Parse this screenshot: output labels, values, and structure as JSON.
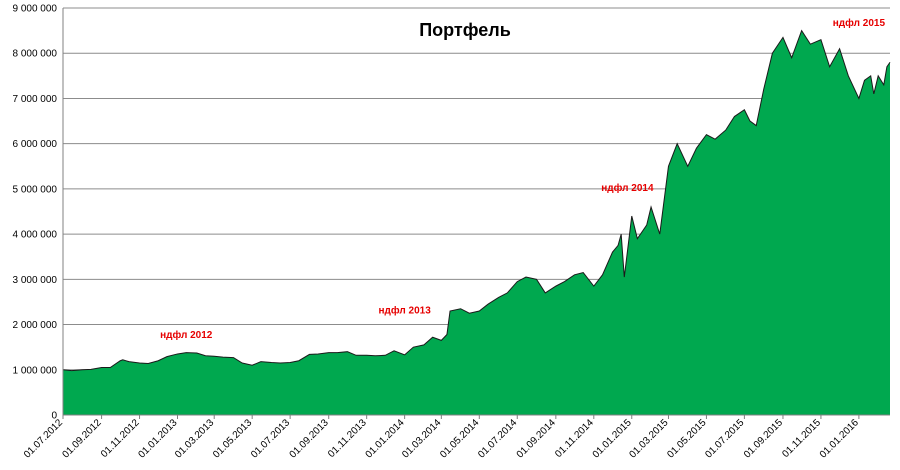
{
  "chart_data": {
    "type": "area",
    "title": "Портфель",
    "xlabel": "",
    "ylabel": "",
    "ylim": [
      0,
      9000000
    ],
    "yticks": [
      0,
      1000000,
      2000000,
      3000000,
      4000000,
      5000000,
      6000000,
      7000000,
      8000000,
      9000000
    ],
    "ytick_labels": [
      "0",
      "1 000 000",
      "2 000 000",
      "3 000 000",
      "4 000 000",
      "5 000 000",
      "6 000 000",
      "7 000 000",
      "8 000 000",
      "9 000 000"
    ],
    "xlim": [
      "2012-07-01",
      "2016-02-20"
    ],
    "xticks": [
      "2012-07-01",
      "2012-09-01",
      "2012-11-01",
      "2013-01-01",
      "2013-03-01",
      "2013-05-01",
      "2013-07-01",
      "2013-09-01",
      "2013-11-01",
      "2014-01-01",
      "2014-03-01",
      "2014-05-01",
      "2014-07-01",
      "2014-09-01",
      "2014-11-01",
      "2015-01-01",
      "2015-03-01",
      "2015-05-01",
      "2015-07-01",
      "2015-09-01",
      "2015-11-01",
      "2016-01-01"
    ],
    "xtick_labels": [
      "01.07.2012",
      "01.09.2012",
      "01.11.2012",
      "01.01.2013",
      "01.03.2013",
      "01.05.2013",
      "01.07.2013",
      "01.09.2013",
      "01.11.2013",
      "01.01.2014",
      "01.03.2014",
      "01.05.2014",
      "01.07.2014",
      "01.09.2014",
      "01.11.2014",
      "01.01.2015",
      "01.03.2015",
      "01.05.2015",
      "01.07.2015",
      "01.09.2015",
      "01.11.2015",
      "01.01.2016"
    ],
    "grid": true,
    "legend": "none",
    "fill_color": "#00A84F",
    "line_color": "#1a1a1a",
    "annotation_color": "#E60000",
    "series": [
      {
        "x": [
          "2012-07-01",
          "2012-07-15",
          "2012-08-01",
          "2012-08-15",
          "2012-09-01",
          "2012-09-15",
          "2012-10-01",
          "2012-10-05",
          "2012-10-15",
          "2012-11-01",
          "2012-11-15",
          "2012-12-01",
          "2012-12-15",
          "2013-01-01",
          "2013-01-15",
          "2013-02-01",
          "2013-02-15",
          "2013-03-01",
          "2013-03-15",
          "2013-04-01",
          "2013-04-15",
          "2013-05-01",
          "2013-05-15",
          "2013-06-01",
          "2013-06-15",
          "2013-07-01",
          "2013-07-15",
          "2013-08-01",
          "2013-08-15",
          "2013-09-01",
          "2013-09-15",
          "2013-10-01",
          "2013-10-15",
          "2013-11-01",
          "2013-11-15",
          "2013-12-01",
          "2013-12-15",
          "2014-01-01",
          "2014-01-15",
          "2014-02-01",
          "2014-02-15",
          "2014-03-01",
          "2014-03-10",
          "2014-03-15",
          "2014-04-01",
          "2014-04-15",
          "2014-05-01",
          "2014-05-15",
          "2014-06-01",
          "2014-06-15",
          "2014-07-01",
          "2014-07-15",
          "2014-08-01",
          "2014-08-15",
          "2014-09-01",
          "2014-09-15",
          "2014-10-01",
          "2014-10-15",
          "2014-11-01",
          "2014-11-15",
          "2014-12-01",
          "2014-12-10",
          "2014-12-15",
          "2014-12-20",
          "2015-01-01",
          "2015-01-10",
          "2015-01-15",
          "2015-01-25",
          "2015-02-01",
          "2015-02-15",
          "2015-03-01",
          "2015-03-15",
          "2015-04-01",
          "2015-04-15",
          "2015-05-01",
          "2015-05-15",
          "2015-06-01",
          "2015-06-15",
          "2015-07-01",
          "2015-07-10",
          "2015-07-20",
          "2015-08-01",
          "2015-08-15",
          "2015-09-01",
          "2015-09-15",
          "2015-10-01",
          "2015-10-15",
          "2015-11-01",
          "2015-11-15",
          "2015-12-01",
          "2015-12-15",
          "2016-01-01",
          "2016-01-10",
          "2016-01-20",
          "2016-01-25",
          "2016-02-01",
          "2016-02-10",
          "2016-02-15",
          "2016-02-20"
        ],
        "values": [
          1000000,
          980000,
          1000000,
          1010000,
          1050000,
          1050000,
          1200000,
          1220000,
          1180000,
          1150000,
          1140000,
          1200000,
          1290000,
          1350000,
          1380000,
          1370000,
          1310000,
          1300000,
          1280000,
          1270000,
          1150000,
          1100000,
          1180000,
          1160000,
          1150000,
          1160000,
          1200000,
          1340000,
          1350000,
          1380000,
          1380000,
          1400000,
          1320000,
          1320000,
          1310000,
          1320000,
          1420000,
          1330000,
          1500000,
          1550000,
          1720000,
          1650000,
          1780000,
          2300000,
          2350000,
          2250000,
          2300000,
          2450000,
          2600000,
          2700000,
          2950000,
          3050000,
          3000000,
          2700000,
          2850000,
          2950000,
          3100000,
          3150000,
          2850000,
          3100000,
          3600000,
          3750000,
          4000000,
          3050000,
          4400000,
          3900000,
          4000000,
          4200000,
          4600000,
          4000000,
          5500000,
          6000000,
          5500000,
          5900000,
          6200000,
          6100000,
          6300000,
          6600000,
          6750000,
          6500000,
          6400000,
          7200000,
          8000000,
          8350000,
          7900000,
          8500000,
          8200000,
          8300000,
          7700000,
          8100000,
          7500000,
          7000000,
          7400000,
          7500000,
          7100000,
          7500000,
          7300000,
          7700000,
          7800000
        ]
      }
    ],
    "annotations": [
      {
        "text": "ндфл 2012",
        "x": "2013-01-15",
        "y": 1700000
      },
      {
        "text": "ндфл 2013",
        "x": "2014-01-01",
        "y": 2250000
      },
      {
        "text": "ндфл 2014",
        "x": "2014-12-25",
        "y": 4950000
      },
      {
        "text": "ндфл 2015",
        "x": "2016-01-01",
        "y": 8600000
      }
    ]
  }
}
